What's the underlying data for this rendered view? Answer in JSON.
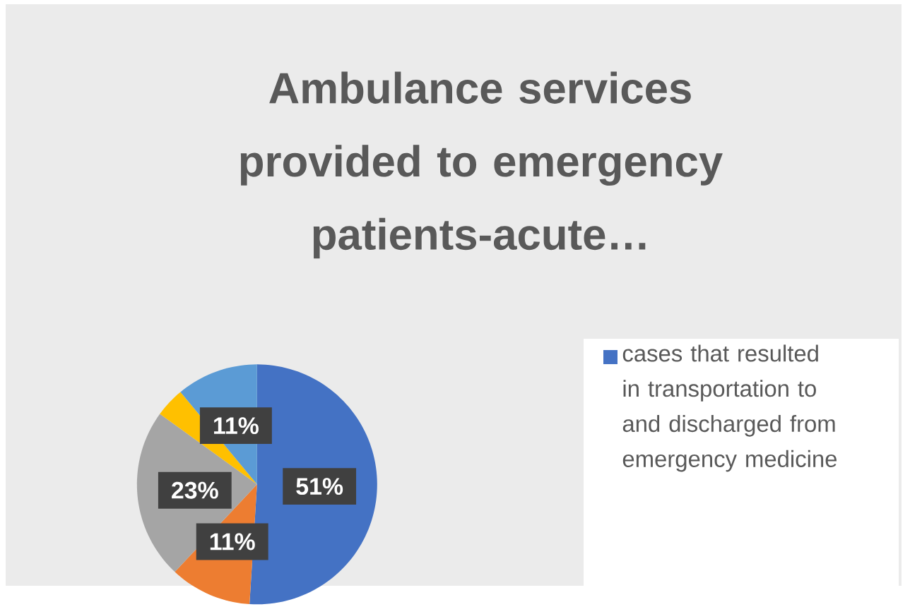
{
  "chart_data": {
    "type": "pie",
    "title": "Ambulance services provided to emergency patients-acute…",
    "categories": [
      "cases that resulted in transportation to and discharged from emergency medicine",
      null,
      null,
      null,
      null
    ],
    "values": [
      51,
      11,
      23,
      4,
      11
    ],
    "colors": [
      "#4472c4",
      "#ed7d31",
      "#a5a5a5",
      "#ffc000",
      "#5b9bd5"
    ],
    "value_labels": [
      "51%",
      "11%",
      "23%",
      null,
      "11%"
    ],
    "legend": "right"
  }
}
